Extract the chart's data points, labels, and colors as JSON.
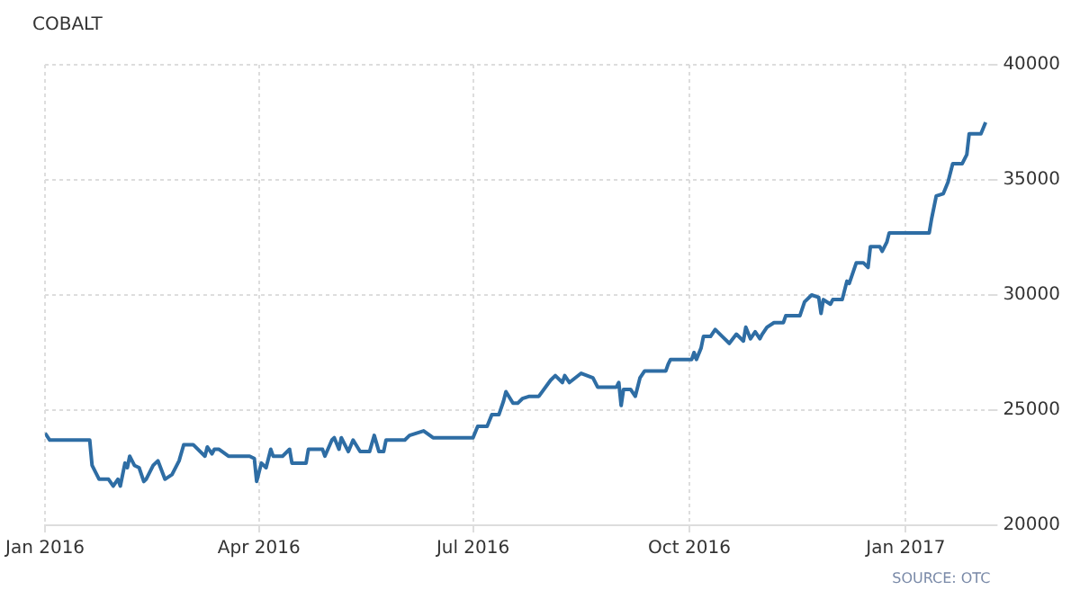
{
  "chart_data": {
    "type": "line",
    "title": "COBALT",
    "annotations": [
      "SOURCE: OTC"
    ],
    "x": [
      "2016-01-01",
      "2016-01-03",
      "2016-01-20",
      "2016-01-21",
      "2016-01-24",
      "2016-01-28",
      "2016-01-30",
      "2016-02-01",
      "2016-02-02",
      "2016-02-04",
      "2016-02-05",
      "2016-02-06",
      "2016-02-08",
      "2016-02-10",
      "2016-02-12",
      "2016-02-13",
      "2016-02-16",
      "2016-02-18",
      "2016-02-21",
      "2016-02-24",
      "2016-02-27",
      "2016-02-29",
      "2016-03-02",
      "2016-03-04",
      "2016-03-09",
      "2016-03-10",
      "2016-03-12",
      "2016-03-13",
      "2016-03-15",
      "2016-03-19",
      "2016-03-21",
      "2016-03-28",
      "2016-03-30",
      "2016-03-31",
      "2016-04-02",
      "2016-04-04",
      "2016-04-06",
      "2016-04-07",
      "2016-04-11",
      "2016-04-14",
      "2016-04-15",
      "2016-04-21",
      "2016-04-22",
      "2016-04-28",
      "2016-04-29",
      "2016-05-02",
      "2016-05-03",
      "2016-05-05",
      "2016-05-06",
      "2016-05-09",
      "2016-05-11",
      "2016-05-14",
      "2016-05-18",
      "2016-05-20",
      "2016-05-22",
      "2016-05-24",
      "2016-05-25",
      "2016-06-02",
      "2016-06-04",
      "2016-06-10",
      "2016-06-14",
      "2016-07-01",
      "2016-07-03",
      "2016-07-07",
      "2016-07-09",
      "2016-07-12",
      "2016-07-14",
      "2016-07-15",
      "2016-07-18",
      "2016-07-20",
      "2016-07-22",
      "2016-07-25",
      "2016-07-29",
      "2016-08-03",
      "2016-08-05",
      "2016-08-08",
      "2016-08-09",
      "2016-08-11",
      "2016-08-16",
      "2016-08-21",
      "2016-08-23",
      "2016-08-31",
      "2016-09-01",
      "2016-09-02",
      "2016-09-03",
      "2016-09-06",
      "2016-09-08",
      "2016-09-10",
      "2016-09-12",
      "2016-09-21",
      "2016-09-22",
      "2016-09-23",
      "2016-10-02",
      "2016-10-03",
      "2016-10-04",
      "2016-10-06",
      "2016-10-07",
      "2016-10-10",
      "2016-10-12",
      "2016-10-15",
      "2016-10-18",
      "2016-10-21",
      "2016-10-24",
      "2016-10-25",
      "2016-10-27",
      "2016-10-29",
      "2016-10-31",
      "2016-11-01",
      "2016-11-03",
      "2016-11-06",
      "2016-11-10",
      "2016-11-11",
      "2016-11-17",
      "2016-11-19",
      "2016-11-22",
      "2016-11-25",
      "2016-11-26",
      "2016-11-27",
      "2016-11-30",
      "2016-12-01",
      "2016-12-05",
      "2016-12-07",
      "2016-12-08",
      "2016-12-11",
      "2016-12-14",
      "2016-12-16",
      "2016-12-17",
      "2016-12-21",
      "2016-12-22",
      "2016-12-24",
      "2016-12-25",
      "2017-01-11",
      "2017-01-12",
      "2017-01-14",
      "2017-01-17",
      "2017-01-19",
      "2017-01-21",
      "2017-01-25",
      "2017-01-27",
      "2017-01-28",
      "2017-02-02",
      "2017-02-04"
    ],
    "series": [
      {
        "color": "#2e6da4",
        "values": [
          24000,
          23700,
          23700,
          22600,
          22000,
          22000,
          21700,
          22000,
          21700,
          22700,
          22500,
          23000,
          22600,
          22500,
          21900,
          22000,
          22600,
          22800,
          22000,
          22200,
          22800,
          23500,
          23500,
          23500,
          23000,
          23400,
          23100,
          23300,
          23300,
          23000,
          23000,
          23000,
          22900,
          21900,
          22700,
          22500,
          23300,
          23000,
          23000,
          23300,
          22700,
          22700,
          23300,
          23300,
          23000,
          23700,
          23800,
          23300,
          23800,
          23200,
          23700,
          23200,
          23200,
          23900,
          23200,
          23200,
          23700,
          23700,
          23900,
          24100,
          23800,
          23800,
          24300,
          24300,
          24800,
          24800,
          25400,
          25800,
          25300,
          25300,
          25500,
          25600,
          25600,
          26300,
          26500,
          26200,
          26500,
          26200,
          26600,
          26400,
          26000,
          26000,
          26200,
          25200,
          25900,
          25900,
          25600,
          26400,
          26700,
          26700,
          27000,
          27200,
          27200,
          27500,
          27200,
          27700,
          28200,
          28200,
          28500,
          28200,
          27900,
          28300,
          28000,
          28600,
          28100,
          28400,
          28100,
          28300,
          28600,
          28800,
          28800,
          29100,
          29100,
          29700,
          30000,
          29900,
          29200,
          29800,
          29600,
          29800,
          29800,
          30600,
          30500,
          31400,
          31400,
          31200,
          32100,
          32100,
          31900,
          32300,
          32700,
          32700,
          33300,
          34300,
          34400,
          34900,
          35700,
          35700,
          36100,
          37000,
          37000,
          37500
        ]
      }
    ],
    "xlim": [
      "2016-01-01",
      "2017-02-06"
    ],
    "xticks": [
      {
        "value": "2016-01-01",
        "label": "Jan 2016"
      },
      {
        "value": "2016-04-01",
        "label": "Apr 2016"
      },
      {
        "value": "2016-07-01",
        "label": "Jul 2016"
      },
      {
        "value": "2016-10-01",
        "label": "Oct 2016"
      },
      {
        "value": "2017-01-01",
        "label": "Jan 2017"
      }
    ],
    "ylim": [
      20000,
      40000
    ],
    "yticks": [
      20000,
      25000,
      30000,
      35000,
      40000
    ],
    "grid": true,
    "legend": false,
    "marker": "none",
    "line_style": "solid"
  }
}
